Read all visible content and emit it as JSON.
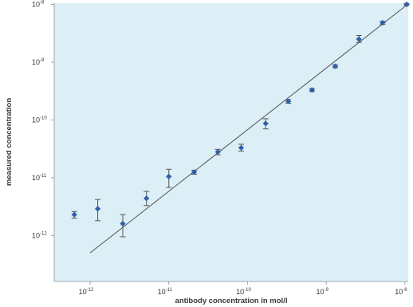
{
  "chart_data": {
    "type": "scatter",
    "xlabel": "antibody concentration in mol/l",
    "ylabel": "measured concentration",
    "x_scale": "log",
    "y_scale": "log",
    "xlim": [
      3.5e-13,
      1.1e-08
    ],
    "ylim": [
      1.6e-13,
      1.05e-08
    ],
    "x_ticks": [
      {
        "base": "10",
        "exp": "-12",
        "value": 1e-12
      },
      {
        "base": "10",
        "exp": "-11",
        "value": 1e-11
      },
      {
        "base": "10",
        "exp": "-10",
        "value": 1e-10
      },
      {
        "base": "10",
        "exp": "-9",
        "value": 1e-09
      },
      {
        "base": "10",
        "exp": "-8",
        "value": 1e-08
      }
    ],
    "y_ticks": [
      {
        "base": "10",
        "exp": "-12",
        "value": 1e-12
      },
      {
        "base": "10",
        "exp": "-11",
        "value": 1e-11
      },
      {
        "base": "10",
        "exp": "-10",
        "value": 1e-10
      },
      {
        "base": "10",
        "exp": "-9",
        "value": 1e-09
      },
      {
        "base": "10",
        "exp": "-8",
        "value": 1e-08
      }
    ],
    "grid": false,
    "plot_background": "#dceef6",
    "marker_color": "#2f5fa8",
    "errorbar_color": "#555555",
    "fit_line_color": "#555555",
    "series": [
      {
        "points": [
          {
            "x": 6.3e-13,
            "y": 2.3e-12,
            "y_low": 2e-12,
            "y_high": 2.6e-12
          },
          {
            "x": 1.25e-12,
            "y": 2.9e-12,
            "y_low": 1.8e-12,
            "y_high": 4.2e-12
          },
          {
            "x": 2.6e-12,
            "y": 1.6e-12,
            "y_low": 9.5e-13,
            "y_high": 2.3e-12
          },
          {
            "x": 5.2e-12,
            "y": 4.4e-12,
            "y_low": 3.3e-12,
            "y_high": 5.8e-12
          },
          {
            "x": 1e-11,
            "y": 1.05e-11,
            "y_low": 6.8e-12,
            "y_high": 1.4e-11
          },
          {
            "x": 2.1e-11,
            "y": 1.25e-11,
            "y_low": 1.15e-11,
            "y_high": 1.35e-11
          },
          {
            "x": 4.2e-11,
            "y": 2.8e-11,
            "y_low": 2.5e-11,
            "y_high": 3.1e-11
          },
          {
            "x": 8.3e-11,
            "y": 3.3e-11,
            "y_low": 2.9e-11,
            "y_high": 3.8e-11
          },
          {
            "x": 1.7e-10,
            "y": 8.7e-11,
            "y_low": 7e-11,
            "y_high": 1.05e-10
          },
          {
            "x": 3.3e-10,
            "y": 2.1e-10,
            "y_low": 1.95e-10,
            "y_high": 2.25e-10
          },
          {
            "x": 6.6e-10,
            "y": 3.3e-10,
            "y_low": 3.1e-10,
            "y_high": 3.5e-10
          },
          {
            "x": 1.3e-09,
            "y": 8.5e-10,
            "y_low": 8e-10,
            "y_high": 9e-10
          },
          {
            "x": 2.6e-09,
            "y": 2.5e-09,
            "y_low": 2.2e-09,
            "y_high": 2.9e-09
          },
          {
            "x": 5.2e-09,
            "y": 4.8e-09,
            "y_low": 4.5e-09,
            "y_high": 5.1e-09
          },
          {
            "x": 1.05e-08,
            "y": 1e-08,
            "y_low": 9.6e-09,
            "y_high": 1.04e-08
          }
        ]
      }
    ],
    "fit_line": {
      "x": [
        1e-12,
        1.08e-08
      ],
      "y": [
        5e-13,
        1e-08
      ]
    }
  }
}
